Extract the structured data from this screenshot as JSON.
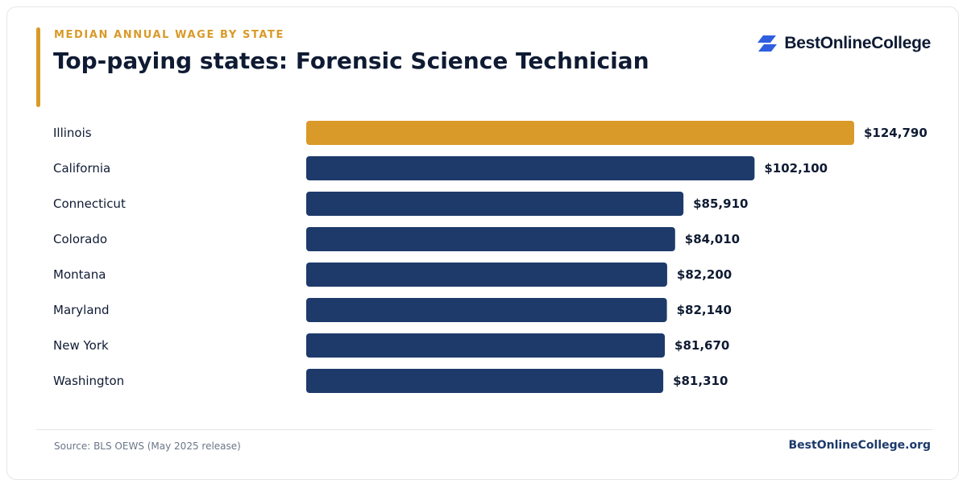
{
  "header": {
    "eyebrow": "MEDIAN ANNUAL WAGE BY STATE",
    "title": "Top-paying states: Forensic Science Technician"
  },
  "brand": {
    "logo_text": "BestOnlineCollege",
    "logo_icon": "stacked-parallelogram-icon",
    "logo_color": "#2f5fe0"
  },
  "footer": {
    "source": "Source: BLS OEWS (May 2025 release)",
    "site": "BestOnlineCollege.org"
  },
  "colors": {
    "highlight": "#d99a29",
    "bar": "#1d3a6b",
    "text": "#0f1b33"
  },
  "chart_data": {
    "type": "bar",
    "orientation": "horizontal",
    "categories": [
      "Illinois",
      "California",
      "Connecticut",
      "Colorado",
      "Montana",
      "Maryland",
      "New York",
      "Washington"
    ],
    "values": [
      124790,
      102100,
      85910,
      84010,
      82200,
      82140,
      81670,
      81310
    ],
    "value_labels": [
      "$124,790",
      "$102,100",
      "$85,910",
      "$84,010",
      "$82,200",
      "$82,140",
      "$81,670",
      "$81,310"
    ],
    "highlight_index": 0,
    "xlim": [
      0,
      124790
    ],
    "grid": false,
    "legend": "none"
  }
}
